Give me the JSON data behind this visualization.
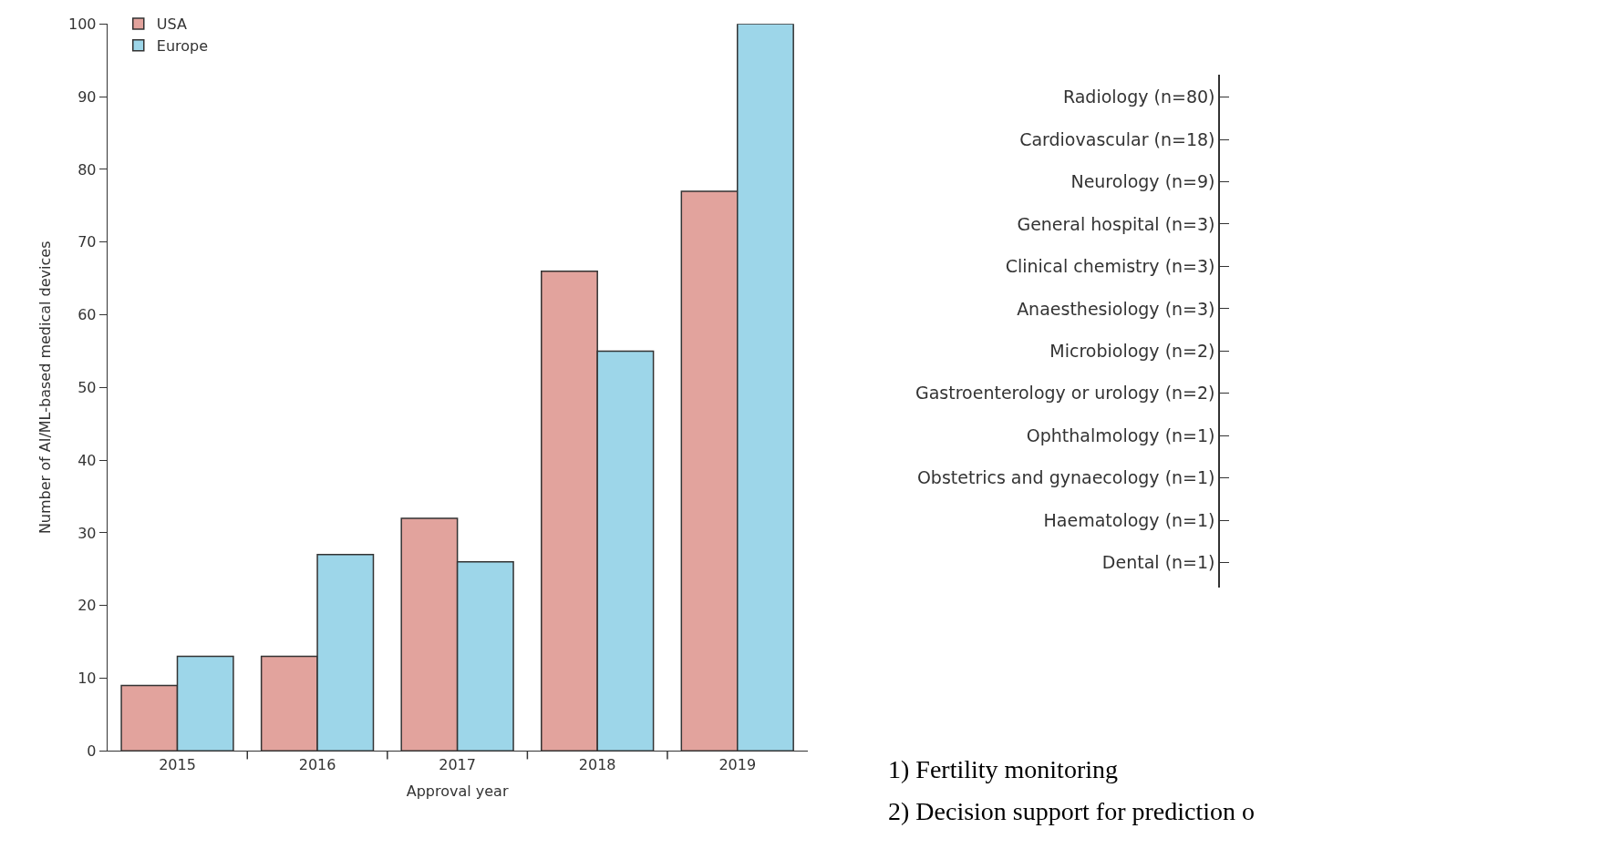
{
  "chart_data": [
    {
      "type": "bar",
      "xlabel": "Approval year",
      "ylabel": "Number of AI/ML-based medical devices",
      "categories": [
        "2015",
        "2016",
        "2017",
        "2018",
        "2019"
      ],
      "series": [
        {
          "name": "USA",
          "color": "#e2a39d",
          "values": [
            9,
            13,
            32,
            66,
            77
          ]
        },
        {
          "name": "Europe",
          "color": "#9dd6e9",
          "values": [
            13,
            27,
            26,
            55,
            100
          ]
        }
      ],
      "ylim": [
        0,
        100
      ],
      "yticks": [
        0,
        10,
        20,
        30,
        40,
        50,
        60,
        70,
        80,
        90,
        100
      ],
      "legend": "top left"
    },
    {
      "type": "other",
      "categories": [
        "Radiology (n=80)",
        "Cardiovascular (n=18)",
        "Neurology (n=9)",
        "General hospital (n=3)",
        "Clinical chemistry (n=3)",
        "Anaesthesiology (n=3)",
        "Microbiology (n=2)",
        "Gastroenterology or urology (n=2)",
        "Ophthalmology (n=1)",
        "Obstetrics and gynaecology (n=1)",
        "Haematology (n=1)",
        "Dental (n=1)"
      ],
      "annotations": [
        "1) Fertility monitoring",
        "2) Decision support for prediction o"
      ]
    }
  ]
}
